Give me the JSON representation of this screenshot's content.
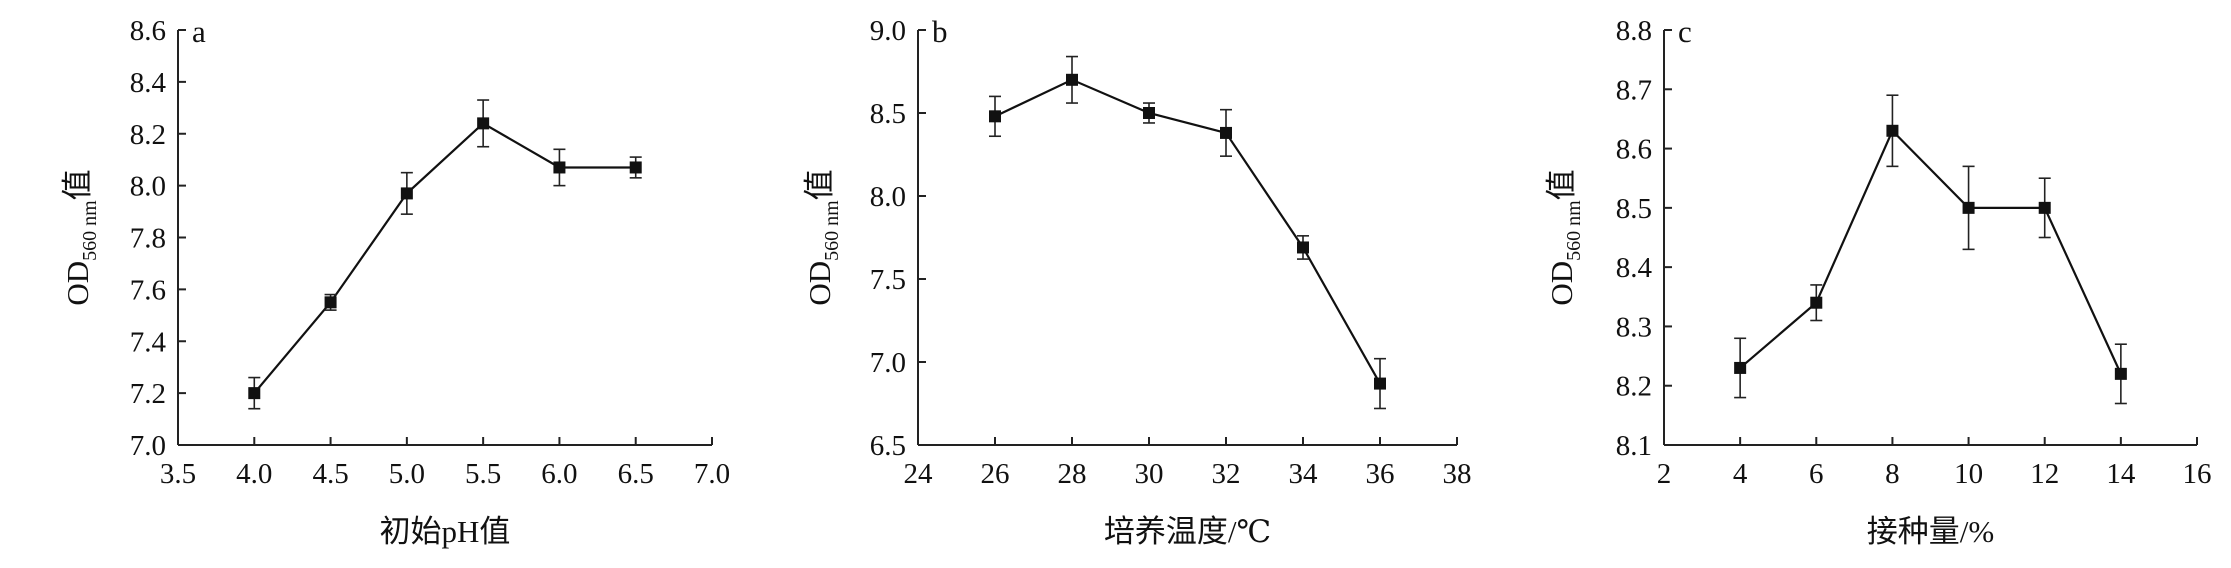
{
  "chart_data": [
    {
      "type": "line",
      "panel_label": "a",
      "xlabel": "初始pH值",
      "ylabel": {
        "main": "OD",
        "sub": "560 nm",
        "suffix": "值"
      },
      "xlim": [
        3.5,
        7.0
      ],
      "ylim": [
        7.0,
        8.6
      ],
      "xticks": [
        "3.5",
        "4.0",
        "4.5",
        "5.0",
        "5.5",
        "6.0",
        "6.5",
        "7.0"
      ],
      "yticks": [
        "7.0",
        "7.2",
        "7.4",
        "7.6",
        "7.8",
        "8.0",
        "8.2",
        "8.4",
        "8.6"
      ],
      "x": [
        4.0,
        4.5,
        5.0,
        5.5,
        6.0,
        6.5
      ],
      "values": [
        7.2,
        7.55,
        7.97,
        8.24,
        8.07,
        8.07
      ],
      "errors": [
        0.06,
        0.03,
        0.08,
        0.09,
        0.07,
        0.04
      ]
    },
    {
      "type": "line",
      "panel_label": "b",
      "xlabel": "培养温度/℃",
      "ylabel": {
        "main": "OD",
        "sub": "560 nm",
        "suffix": "值"
      },
      "xlim": [
        24,
        38
      ],
      "ylim": [
        6.5,
        9.0
      ],
      "xticks": [
        "24",
        "26",
        "28",
        "30",
        "32",
        "34",
        "36",
        "38"
      ],
      "yticks": [
        "6.5",
        "7.0",
        "7.5",
        "8.0",
        "8.5",
        "9.0"
      ],
      "x": [
        26,
        28,
        30,
        32,
        34,
        36
      ],
      "values": [
        8.48,
        8.7,
        8.5,
        8.38,
        7.69,
        6.87
      ],
      "errors": [
        0.12,
        0.14,
        0.06,
        0.14,
        0.07,
        0.15
      ]
    },
    {
      "type": "line",
      "panel_label": "c",
      "xlabel": "接种量/%",
      "ylabel": {
        "main": "OD",
        "sub": "560 nm",
        "suffix": "值"
      },
      "xlim": [
        2,
        16
      ],
      "ylim": [
        8.1,
        8.8
      ],
      "xticks": [
        "2",
        "4",
        "6",
        "8",
        "10",
        "12",
        "14",
        "16"
      ],
      "yticks": [
        "8.1",
        "8.2",
        "8.3",
        "8.4",
        "8.5",
        "8.6",
        "8.7",
        "8.8"
      ],
      "x": [
        4,
        6,
        8,
        10,
        12,
        14
      ],
      "values": [
        8.23,
        8.34,
        8.63,
        8.5,
        8.5,
        8.22
      ],
      "errors": [
        0.05,
        0.03,
        0.06,
        0.07,
        0.05,
        0.05
      ]
    }
  ]
}
